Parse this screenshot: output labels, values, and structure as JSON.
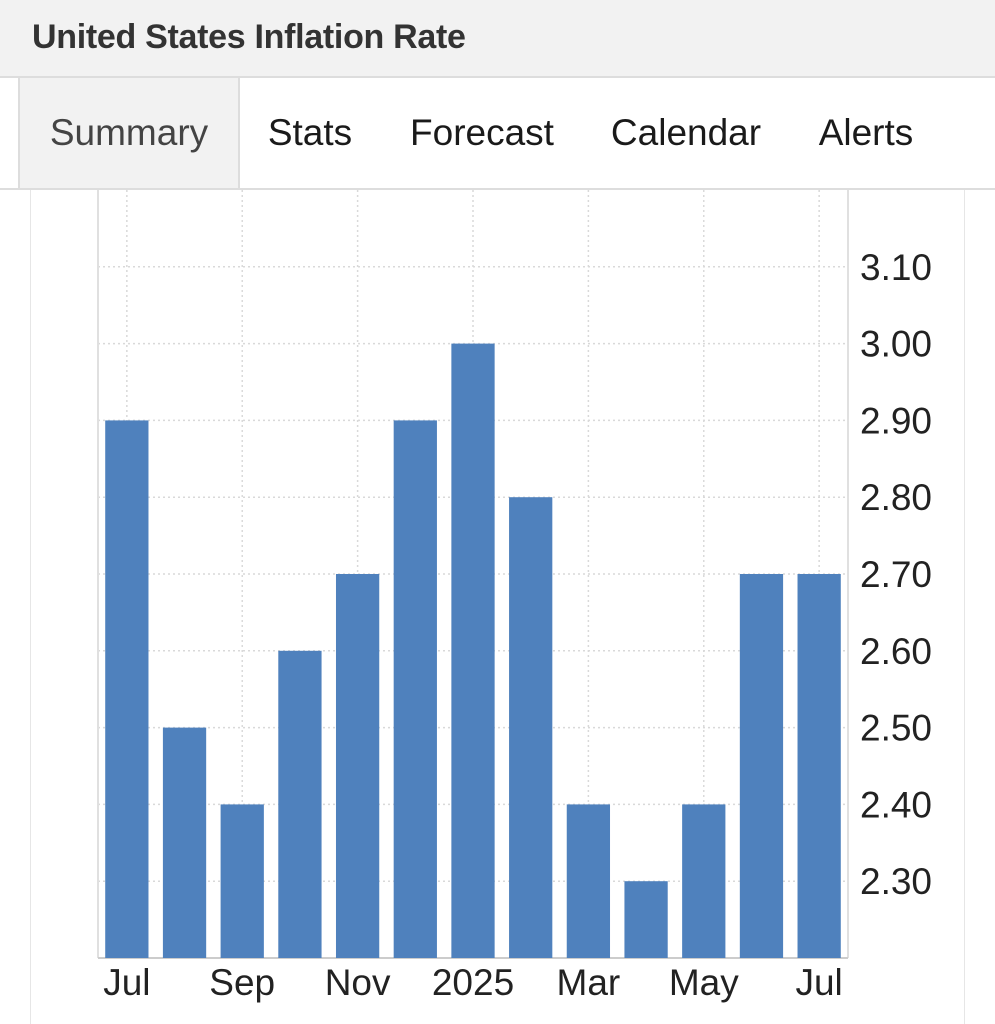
{
  "header": {
    "title": "United States Inflation Rate"
  },
  "tabs": [
    {
      "label": "Summary",
      "active": true
    },
    {
      "label": "Stats",
      "active": false
    },
    {
      "label": "Forecast",
      "active": false
    },
    {
      "label": "Calendar",
      "active": false
    },
    {
      "label": "Alerts",
      "active": false
    }
  ],
  "colors": {
    "bar": "#4f81bd",
    "grid": "#d9d9d9",
    "axis_text": "#222222"
  },
  "chart_data": {
    "type": "bar",
    "categories": [
      "Jul 2024",
      "Aug 2024",
      "Sep 2024",
      "Oct 2024",
      "Nov 2024",
      "Dec 2024",
      "Jan 2025",
      "Feb 2025",
      "Mar 2025",
      "Apr 2025",
      "May 2025",
      "Jun 2025",
      "Jul 2025"
    ],
    "values": [
      2.9,
      2.5,
      2.4,
      2.6,
      2.7,
      2.9,
      3.0,
      2.8,
      2.4,
      2.3,
      2.4,
      2.7,
      2.7
    ],
    "x_tick_labels": [
      {
        "label": "Jul",
        "category": "Jul 2024"
      },
      {
        "label": "Sep",
        "category": "Sep 2024"
      },
      {
        "label": "Nov",
        "category": "Nov 2024"
      },
      {
        "label": "2025",
        "category": "Jan 2025"
      },
      {
        "label": "Mar",
        "category": "Mar 2025"
      },
      {
        "label": "May",
        "category": "May 2025"
      },
      {
        "label": "Jul",
        "category": "Jul 2025"
      }
    ],
    "y_ticks": [
      "2.30",
      "2.40",
      "2.50",
      "2.60",
      "2.70",
      "2.80",
      "2.90",
      "3.00",
      "3.10"
    ],
    "title": "",
    "xlabel": "",
    "ylabel": "",
    "ylim": [
      2.2,
      3.2
    ],
    "y_axis_position": "right",
    "grid": true
  }
}
